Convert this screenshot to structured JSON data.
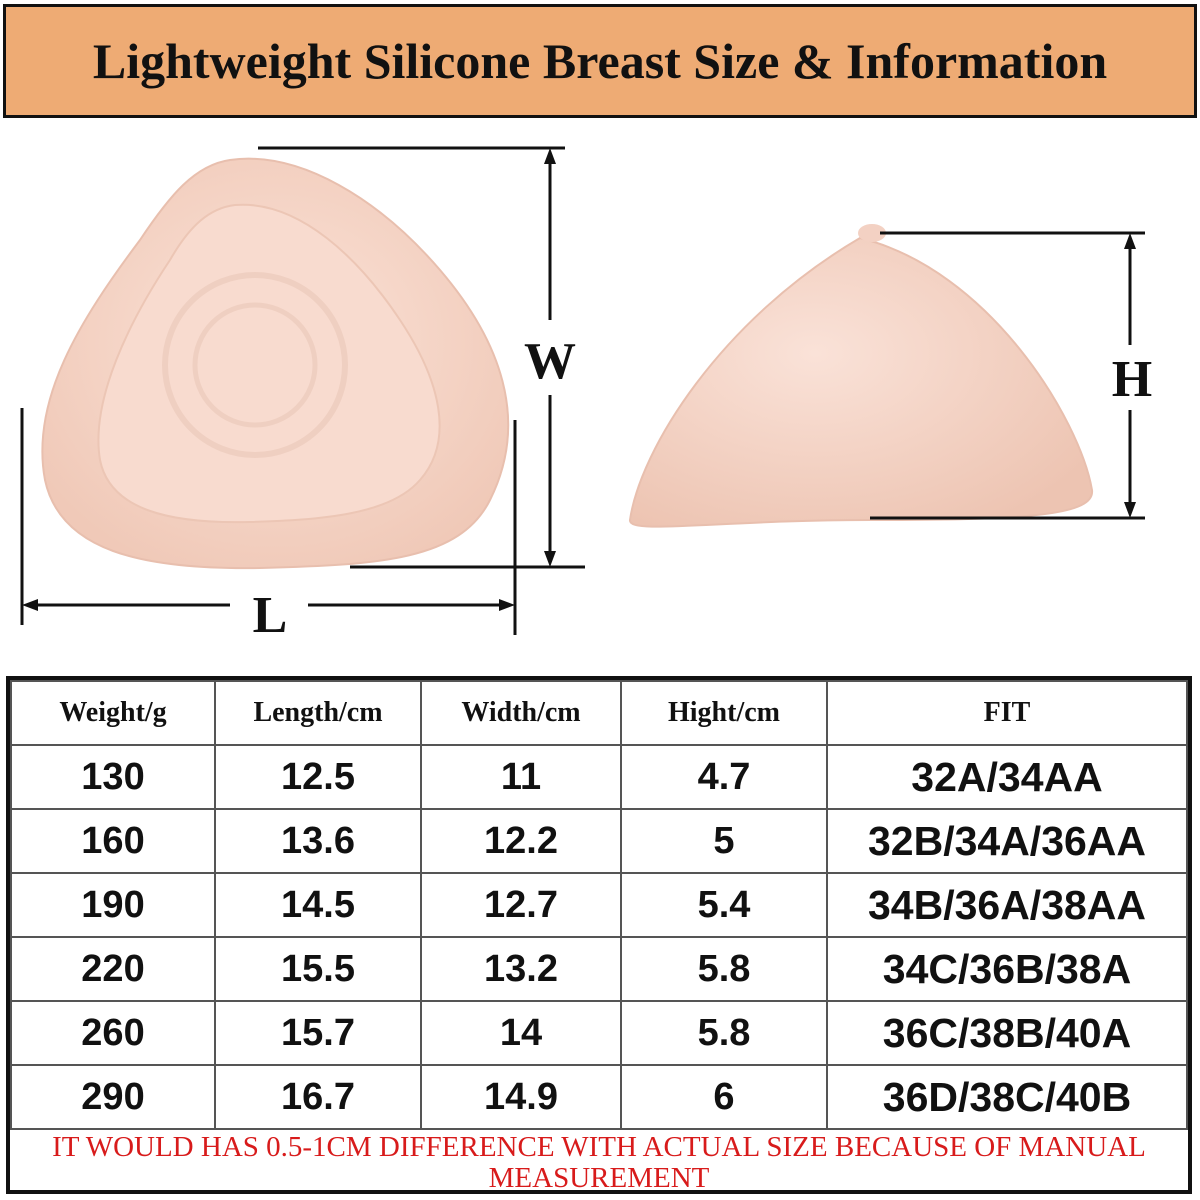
{
  "header": {
    "title": "Lightweight Silicone Breast Size & Information"
  },
  "diagram": {
    "width_label": "W",
    "height_label": "H",
    "length_label": "L"
  },
  "table": {
    "columns": [
      "Weight/g",
      "Length/cm",
      "Width/cm",
      "Hight/cm",
      "FIT"
    ],
    "rows": [
      [
        130,
        12.5,
        11,
        4.7,
        "32A/34AA"
      ],
      [
        160,
        13.6,
        12.2,
        5,
        "32B/34A/36AA"
      ],
      [
        190,
        14.5,
        12.7,
        5.4,
        "34B/36A/38AA"
      ],
      [
        220,
        15.5,
        13.2,
        5.8,
        "34C/36B/38A"
      ],
      [
        260,
        15.7,
        14,
        5.8,
        "36C/38B/40A"
      ],
      [
        290,
        16.7,
        14.9,
        6,
        "36D/38C/40B"
      ]
    ]
  },
  "note": "IT WOULD HAS 0.5-1CM DIFFERENCE WITH ACTUAL SIZE BECAUSE OF MANUAL MEASUREMENT"
}
